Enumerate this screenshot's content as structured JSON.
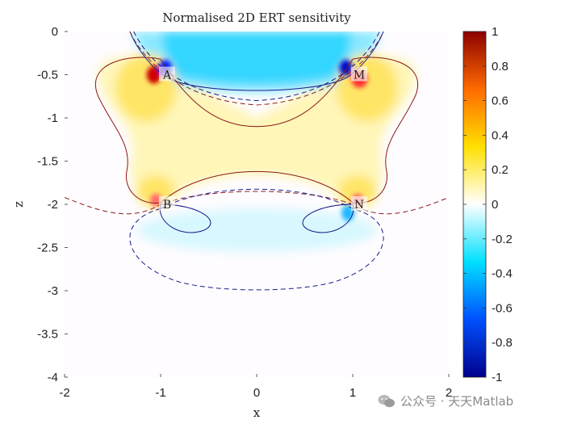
{
  "chart_data": {
    "type": "heatmap",
    "title": "Normalised 2D ERT sensitivity",
    "xlabel": "x",
    "ylabel": "z",
    "xlim": [
      -2,
      2
    ],
    "ylim": [
      -4,
      0
    ],
    "x_ticks": [
      -2,
      -1,
      0,
      1,
      2
    ],
    "y_ticks": [
      0,
      -0.5,
      -1,
      -1.5,
      -2,
      -2.5,
      -3,
      -3.5,
      -4
    ],
    "grid": false,
    "colorbar": {
      "colormap": "blue-cyan-white-yellow-red",
      "range": [
        -1,
        1
      ],
      "ticks": [
        1,
        0.8,
        0.6,
        0.4,
        0.2,
        0,
        -0.2,
        -0.4,
        -0.6,
        -0.8,
        -1
      ],
      "colors": [
        "#00008c",
        "#0050ff",
        "#00e0ff",
        "#ffffff",
        "#ffe000",
        "#ff6a00",
        "#8c0000"
      ]
    },
    "electrodes": [
      {
        "label": "A",
        "x": -1,
        "z": -0.5
      },
      {
        "label": "M",
        "x": 1,
        "z": -0.5
      },
      {
        "label": "B",
        "x": -1,
        "z": -2
      },
      {
        "label": "N",
        "x": 1,
        "z": -2
      }
    ],
    "contours": [
      {
        "style": "solid",
        "color": "#8b1a1a",
        "level": "positive",
        "region": "upper A-M-B-N lobe"
      },
      {
        "style": "solid",
        "color": "#1a1a8b",
        "level": "negative",
        "region": "between A and M"
      },
      {
        "style": "dashed",
        "color": "#8b1a1a",
        "level": "positive"
      },
      {
        "style": "dashed",
        "color": "#1a1a8b",
        "level": "negative"
      }
    ]
  },
  "watermark": {
    "text": "公众号 · 天天Matlab"
  }
}
